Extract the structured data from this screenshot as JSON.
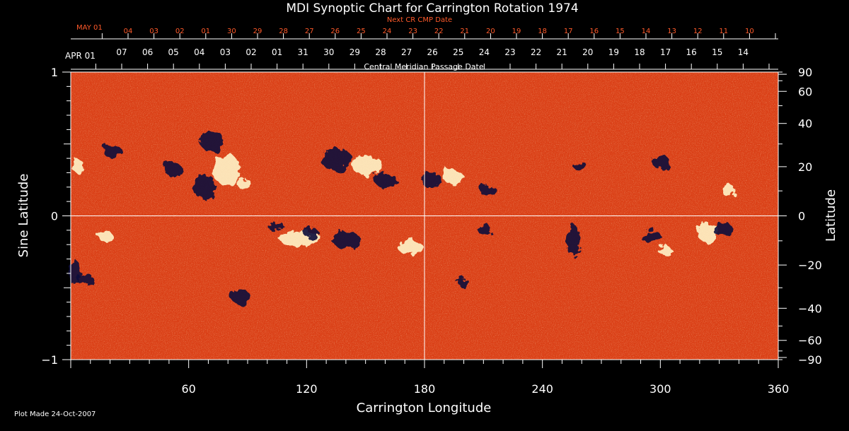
{
  "chart_data": {
    "type": "heatmap",
    "title": "MDI Synoptic Chart for Carrington Rotation 1974",
    "xlabel": "Carrington Longitude",
    "ylabel_left": "Sine Latitude",
    "ylabel_right": "Latitude",
    "xlim": [
      0,
      360
    ],
    "ylim_sine": [
      -1,
      1
    ],
    "x_ticks": [
      60,
      120,
      180,
      240,
      300,
      360
    ],
    "y_left_ticks": [
      {
        "value": 1,
        "label": "1"
      },
      {
        "value": 0,
        "label": "0"
      },
      {
        "value": -1,
        "label": "−1"
      }
    ],
    "y_right_ticks_deg": [
      90,
      60,
      40,
      20,
      0,
      -20,
      -40,
      -60,
      -90
    ],
    "y_right_tick_labels": [
      "90",
      "60",
      "40",
      "20",
      "0",
      "−20",
      "−40",
      "−60",
      "−90"
    ],
    "crosshair": {
      "longitude": 180,
      "sine_latitude": 0
    },
    "top_axis_current": {
      "title": "Central Meridian Passage Date",
      "start_label": "APR 01",
      "date_labels": [
        "07",
        "06",
        "05",
        "04",
        "03",
        "02",
        "01",
        "31",
        "30",
        "29",
        "28",
        "27",
        "26",
        "25",
        "24",
        "23",
        "22",
        "21",
        "20",
        "19",
        "18",
        "17",
        "16",
        "15",
        "14"
      ]
    },
    "top_axis_next": {
      "title": "Next CR CMP Date",
      "start_label": "MAY 01",
      "date_labels": [
        "04",
        "03",
        "02",
        "01",
        "30",
        "29",
        "28",
        "27",
        "26",
        "25",
        "24",
        "23",
        "22",
        "21",
        "20",
        "19",
        "18",
        "17",
        "16",
        "15",
        "14",
        "13",
        "12",
        "11",
        "10"
      ],
      "color": "#ff5a2a"
    },
    "colors": {
      "background": "#000000",
      "field_base": "#e8461a",
      "positive": "#fff4c8",
      "negative": "#0a0a3a",
      "accent": "#ff5a2a"
    },
    "footer": "Plot Made 24-Oct-2007"
  }
}
